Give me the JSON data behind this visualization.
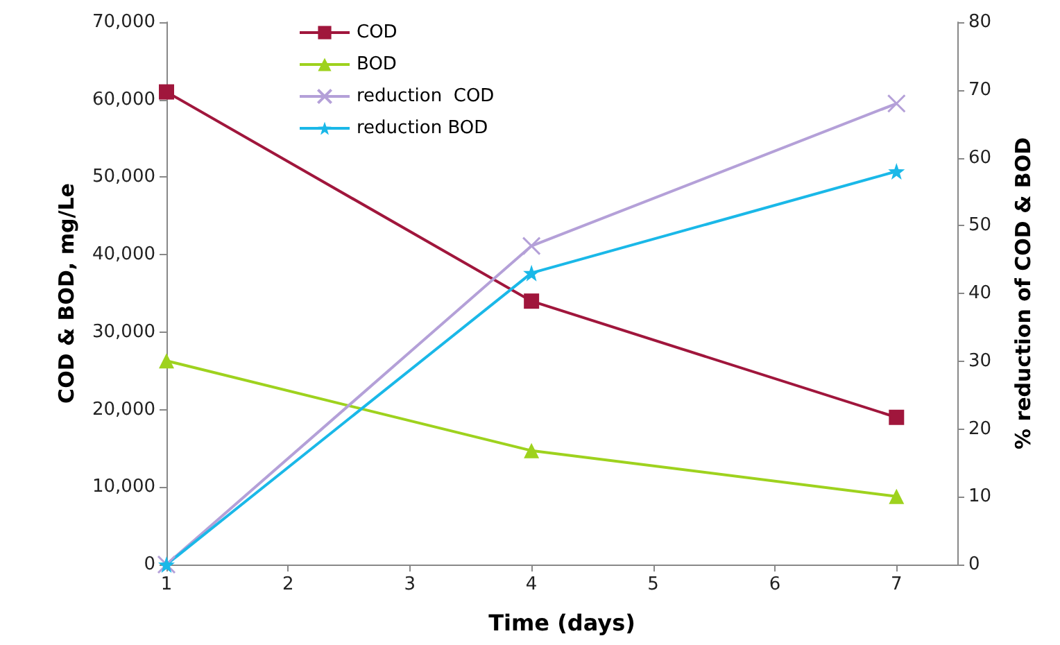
{
  "chart_data": {
    "type": "line",
    "xlabel": "Time (days)",
    "ylabel": "COD & BOD, mg/Le",
    "y2label": "% reduction of COD & BOD",
    "x": [
      1,
      4,
      7
    ],
    "xlim": [
      1,
      7.5
    ],
    "xticks": [
      1,
      2,
      3,
      4,
      5,
      6,
      7
    ],
    "ylim": [
      0,
      70000
    ],
    "yticks": [
      {
        "value": 0,
        "label": "0"
      },
      {
        "value": 10000,
        "label": "10,000"
      },
      {
        "value": 20000,
        "label": "20,000"
      },
      {
        "value": 30000,
        "label": "30,000"
      },
      {
        "value": 40000,
        "label": "40,000"
      },
      {
        "value": 50000,
        "label": "50,000"
      },
      {
        "value": 60000,
        "label": "60,000"
      },
      {
        "value": 70000,
        "label": "70,000"
      }
    ],
    "y2lim": [
      0,
      80
    ],
    "y2ticks": [
      0,
      10,
      20,
      30,
      40,
      50,
      60,
      70,
      80
    ],
    "grid": false,
    "legend": "top left",
    "series": [
      {
        "name": "COD",
        "color": "#a0163c",
        "marker": "square",
        "values": [
          61000,
          34000,
          19000
        ]
      },
      {
        "name": "BOD",
        "color": "#9ed21e",
        "marker": "triangle",
        "values": [
          26300,
          14700,
          8800
        ]
      },
      {
        "name": "reduction  COD",
        "color": "#b4a0d8",
        "marker": "cross",
        "axis": "y2",
        "values": [
          0,
          47,
          68
        ]
      },
      {
        "name": "reduction BOD",
        "color": "#1ab8e8",
        "marker": "star",
        "axis": "y2",
        "values": [
          0,
          43,
          58
        ]
      }
    ]
  }
}
